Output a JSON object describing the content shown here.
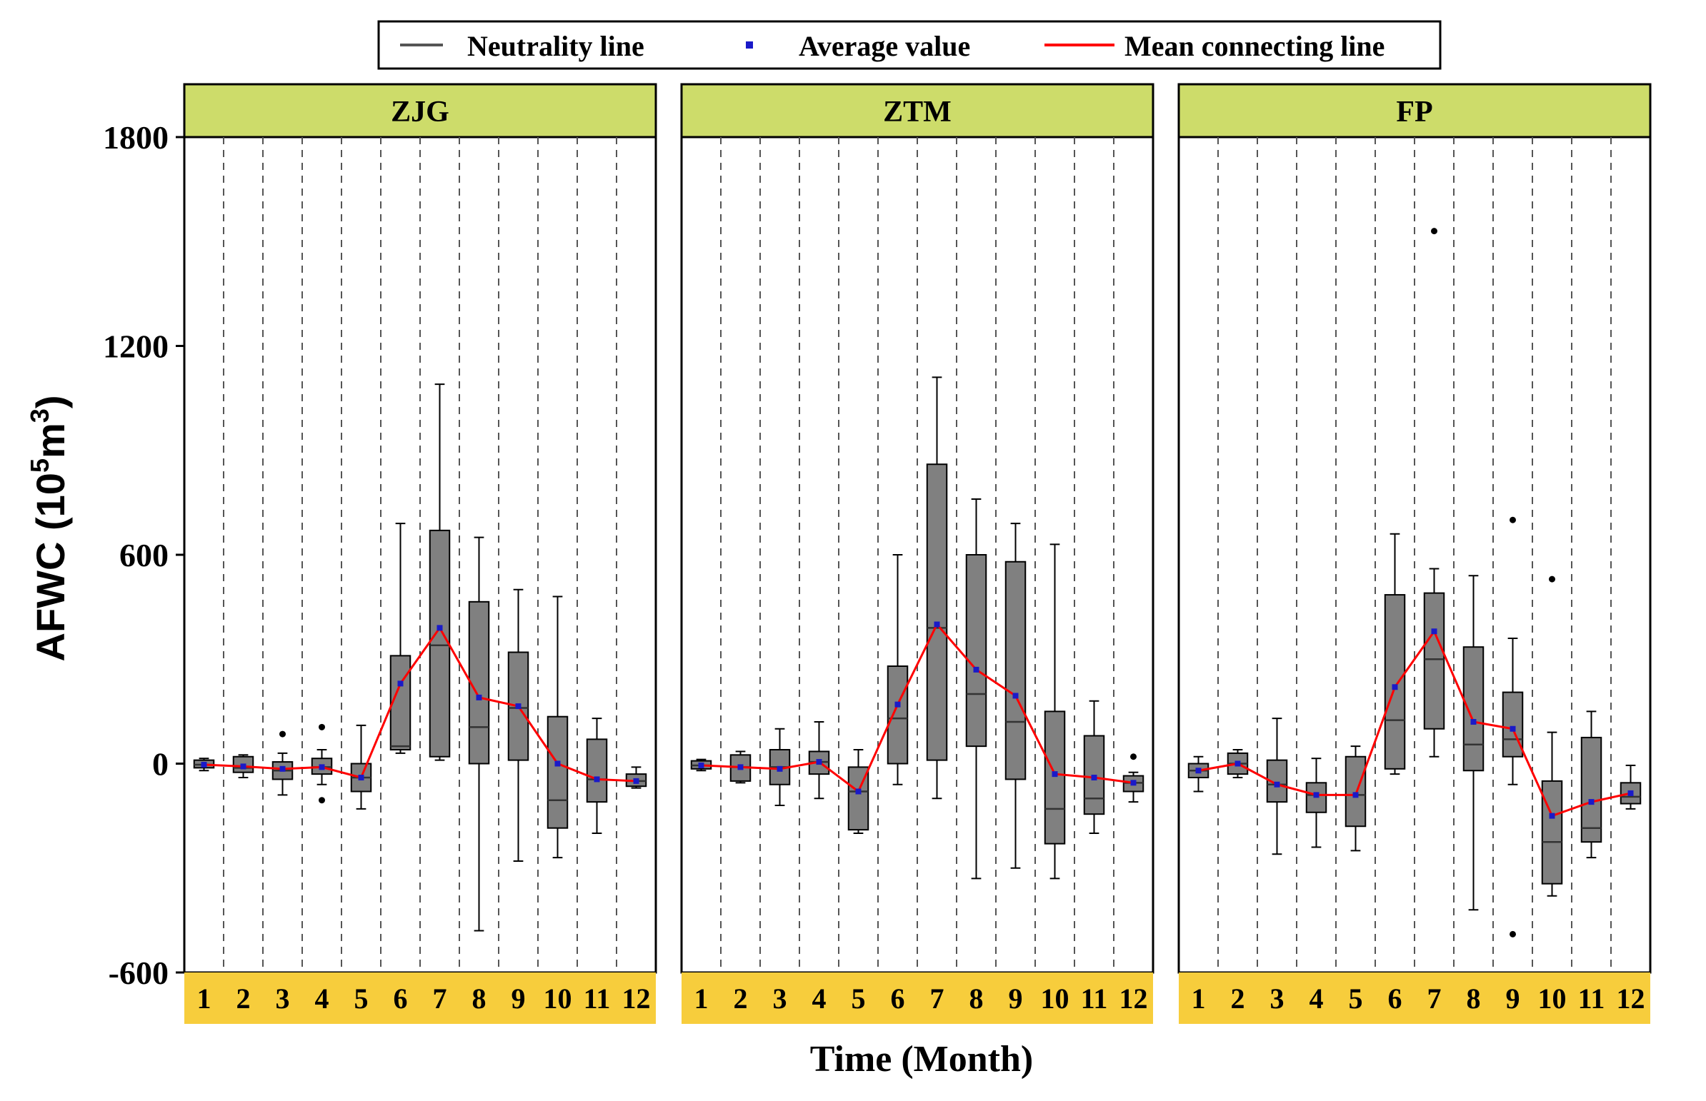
{
  "chart_data": {
    "type": "boxplot",
    "ylabel": "AFWC (10",
    "ylabel_sup": "5",
    "ylabel_unit": "m",
    "ylabel_sup2": "3",
    "ylabel_close": ")",
    "xlabel": "Time (Month)",
    "ylim": [
      -600,
      1800
    ],
    "yticks": [
      -600,
      0,
      600,
      1200,
      1800
    ],
    "ytick_labels": [
      "-600",
      "0",
      "600",
      "1200",
      "1800"
    ],
    "months": [
      "1",
      "2",
      "3",
      "4",
      "5",
      "6",
      "7",
      "8",
      "9",
      "10",
      "11",
      "12"
    ],
    "legend": {
      "neutrality": "Neutrality line",
      "average": "Average value",
      "mean_line": "Mean connecting line"
    },
    "colors": {
      "strip": "#cddc6a",
      "month_strip": "#f7cd3c",
      "box": "#808080",
      "mean_line": "#ff0000",
      "mean_point": "#1a1ac8"
    },
    "panels": [
      {
        "name": "ZJG",
        "boxes": [
          {
            "min": -20,
            "q1": -12,
            "median": -3,
            "q3": 10,
            "max": 15,
            "mean": -3,
            "outliers": []
          },
          {
            "min": -40,
            "q1": -25,
            "median": -12,
            "q3": 20,
            "max": 25,
            "mean": -8,
            "outliers": []
          },
          {
            "min": -90,
            "q1": -45,
            "median": -20,
            "q3": 5,
            "max": 30,
            "mean": -15,
            "outliers": [
              85
            ]
          },
          {
            "min": -60,
            "q1": -30,
            "median": -10,
            "q3": 15,
            "max": 40,
            "mean": -10,
            "outliers": [
              105,
              -105
            ]
          },
          {
            "min": -130,
            "q1": -80,
            "median": -40,
            "q3": 0,
            "max": 110,
            "mean": -40,
            "outliers": []
          },
          {
            "min": 30,
            "q1": 40,
            "median": 50,
            "q3": 310,
            "max": 690,
            "mean": 230,
            "outliers": []
          },
          {
            "min": 10,
            "q1": 20,
            "median": 340,
            "q3": 670,
            "max": 1090,
            "mean": 390,
            "outliers": []
          },
          {
            "min": -480,
            "q1": 0,
            "median": 105,
            "q3": 465,
            "max": 650,
            "mean": 190,
            "outliers": []
          },
          {
            "min": -280,
            "q1": 10,
            "median": 160,
            "q3": 320,
            "max": 500,
            "mean": 165,
            "outliers": []
          },
          {
            "min": -270,
            "q1": -185,
            "median": -105,
            "q3": 135,
            "max": 480,
            "mean": 0,
            "outliers": []
          },
          {
            "min": -200,
            "q1": -110,
            "median": -45,
            "q3": 70,
            "max": 130,
            "mean": -45,
            "outliers": []
          },
          {
            "min": -70,
            "q1": -65,
            "median": -50,
            "q3": -30,
            "max": -10,
            "mean": -50,
            "outliers": []
          }
        ]
      },
      {
        "name": "ZTM",
        "boxes": [
          {
            "min": -20,
            "q1": -15,
            "median": -5,
            "q3": 8,
            "max": 12,
            "mean": -5,
            "outliers": []
          },
          {
            "min": -55,
            "q1": -50,
            "median": -10,
            "q3": 25,
            "max": 35,
            "mean": -10,
            "outliers": []
          },
          {
            "min": -120,
            "q1": -60,
            "median": -10,
            "q3": 40,
            "max": 100,
            "mean": -15,
            "outliers": []
          },
          {
            "min": -100,
            "q1": -30,
            "median": 5,
            "q3": 35,
            "max": 120,
            "mean": 5,
            "outliers": []
          },
          {
            "min": -200,
            "q1": -190,
            "median": -80,
            "q3": -10,
            "max": 40,
            "mean": -80,
            "outliers": []
          },
          {
            "min": -60,
            "q1": 0,
            "median": 130,
            "q3": 280,
            "max": 600,
            "mean": 170,
            "outliers": []
          },
          {
            "min": -100,
            "q1": 10,
            "median": 390,
            "q3": 860,
            "max": 1110,
            "mean": 400,
            "outliers": []
          },
          {
            "min": -330,
            "q1": 50,
            "median": 200,
            "q3": 600,
            "max": 760,
            "mean": 270,
            "outliers": []
          },
          {
            "min": -300,
            "q1": -45,
            "median": 120,
            "q3": 580,
            "max": 690,
            "mean": 195,
            "outliers": []
          },
          {
            "min": -330,
            "q1": -230,
            "median": -130,
            "q3": 150,
            "max": 630,
            "mean": -30,
            "outliers": []
          },
          {
            "min": -200,
            "q1": -145,
            "median": -100,
            "q3": 80,
            "max": 180,
            "mean": -40,
            "outliers": []
          },
          {
            "min": -110,
            "q1": -80,
            "median": -55,
            "q3": -35,
            "max": -25,
            "mean": -55,
            "outliers": [
              20
            ]
          }
        ]
      },
      {
        "name": "FP",
        "boxes": [
          {
            "min": -80,
            "q1": -40,
            "median": -20,
            "q3": 0,
            "max": 20,
            "mean": -20,
            "outliers": []
          },
          {
            "min": -40,
            "q1": -30,
            "median": 0,
            "q3": 30,
            "max": 40,
            "mean": 0,
            "outliers": []
          },
          {
            "min": -260,
            "q1": -110,
            "median": -60,
            "q3": 10,
            "max": 130,
            "mean": -60,
            "outliers": []
          },
          {
            "min": -240,
            "q1": -140,
            "median": -90,
            "q3": -55,
            "max": 15,
            "mean": -90,
            "outliers": []
          },
          {
            "min": -250,
            "q1": -180,
            "median": -90,
            "q3": 20,
            "max": 50,
            "mean": -90,
            "outliers": []
          },
          {
            "min": -30,
            "q1": -15,
            "median": 125,
            "q3": 485,
            "max": 660,
            "mean": 220,
            "outliers": []
          },
          {
            "min": 20,
            "q1": 100,
            "median": 300,
            "q3": 490,
            "max": 560,
            "mean": 380,
            "outliers": [
              1530
            ]
          },
          {
            "min": -420,
            "q1": -20,
            "median": 55,
            "q3": 335,
            "max": 540,
            "mean": 120,
            "outliers": []
          },
          {
            "min": -60,
            "q1": 20,
            "median": 70,
            "q3": 205,
            "max": 360,
            "mean": 100,
            "outliers": [
              700,
              -490
            ]
          },
          {
            "min": -380,
            "q1": -345,
            "median": -225,
            "q3": -50,
            "max": 90,
            "mean": -150,
            "outliers": [
              530
            ]
          },
          {
            "min": -270,
            "q1": -225,
            "median": -185,
            "q3": 75,
            "max": 150,
            "mean": -110,
            "outliers": []
          },
          {
            "min": -130,
            "q1": -115,
            "median": -95,
            "q3": -55,
            "max": -5,
            "mean": -85,
            "outliers": []
          }
        ]
      }
    ]
  }
}
